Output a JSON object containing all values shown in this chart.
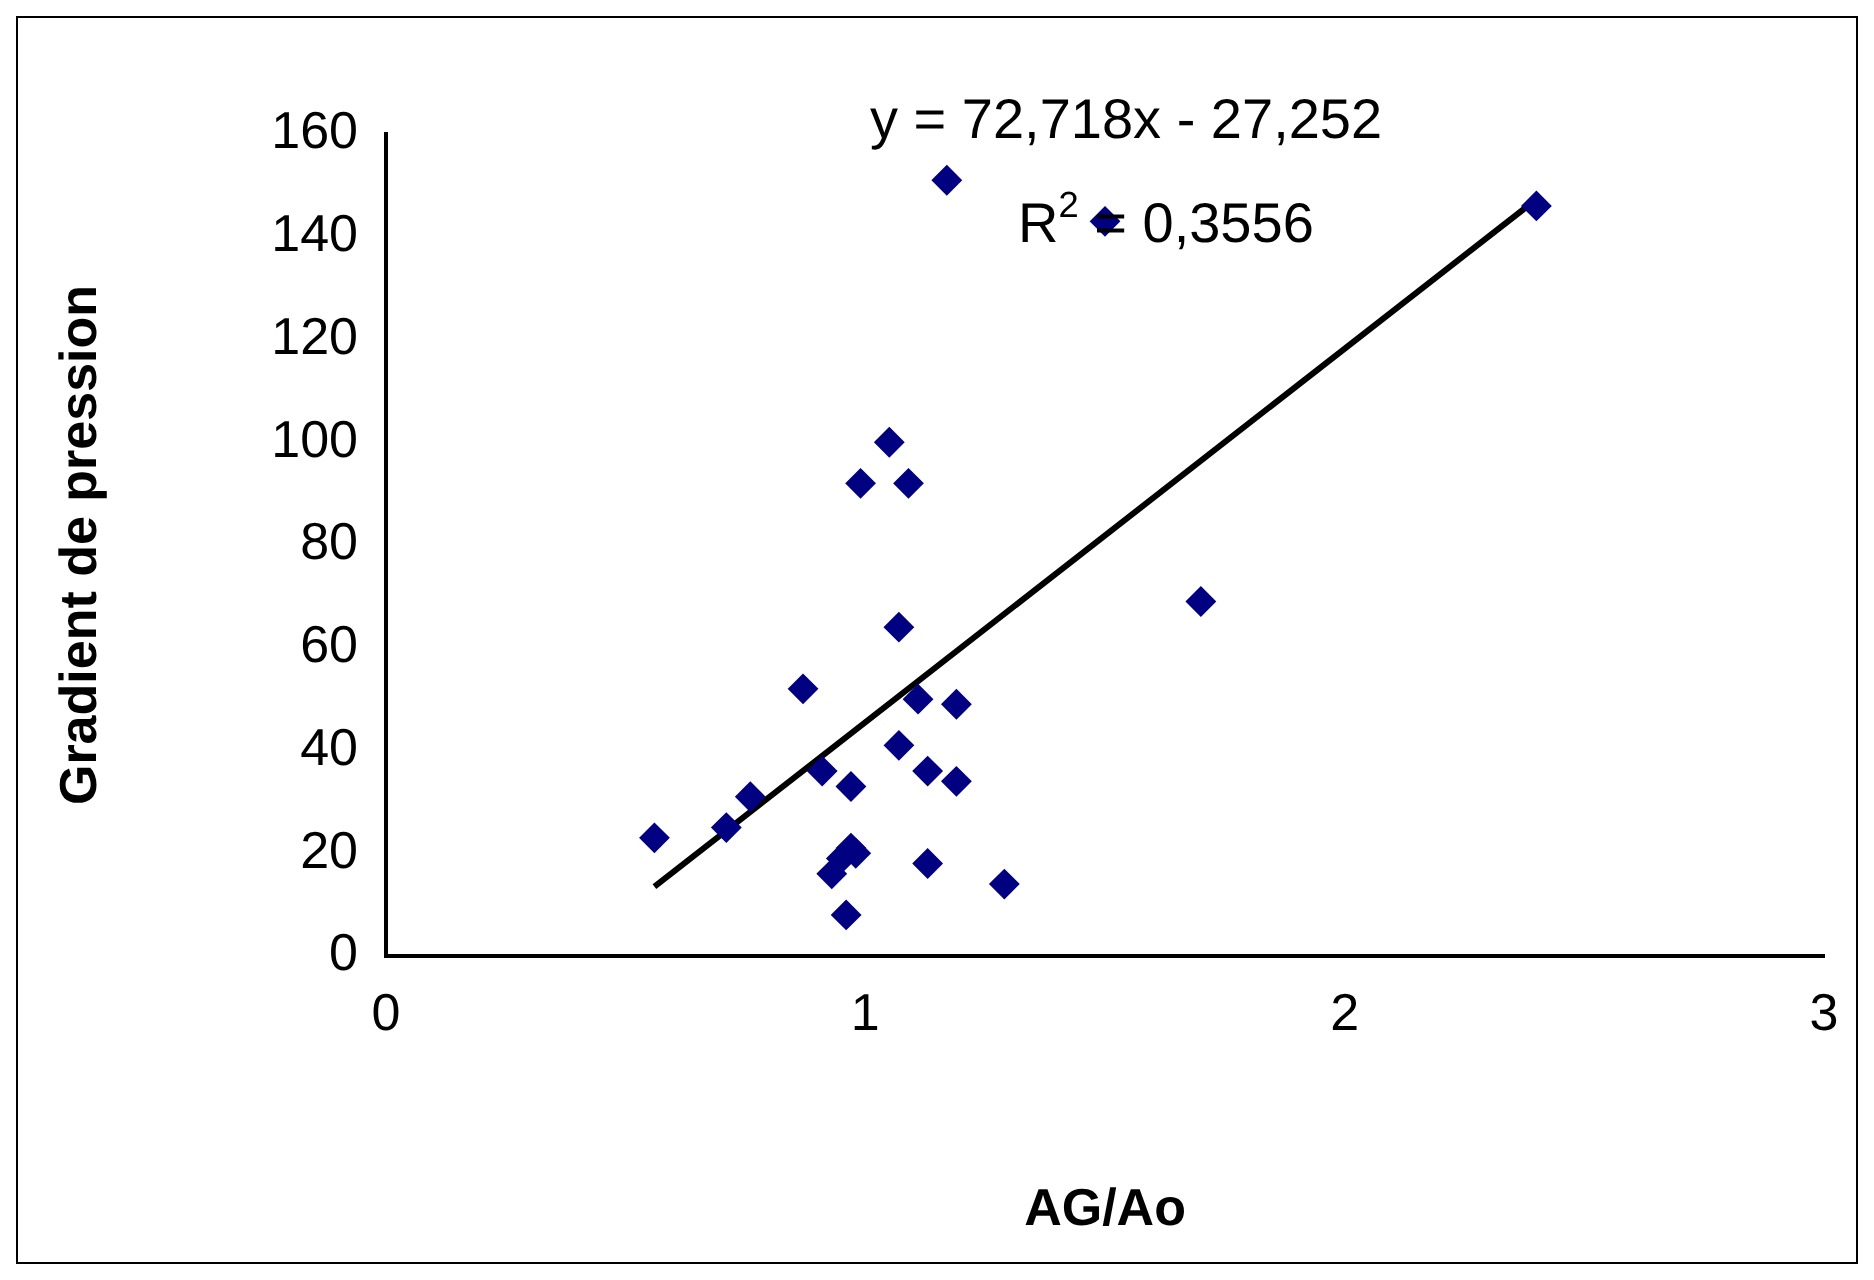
{
  "chart_data": {
    "type": "scatter",
    "xlabel": "AG/Ao",
    "ylabel": "Gradient de pression",
    "xlim": [
      0,
      3
    ],
    "xticks": [
      0,
      1,
      2,
      3
    ],
    "ylim": [
      0,
      160
    ],
    "yticks": [
      0,
      20,
      40,
      60,
      80,
      100,
      120,
      140,
      160
    ],
    "grid": false,
    "legend": false,
    "annotations": [
      "y = 72,718x - 27,252",
      "R$^{2}$ = 0,3556"
    ],
    "series": [
      {
        "color": "#000080",
        "marker": "diamond",
        "x": [
          0.56,
          0.71,
          0.76,
          0.87,
          0.91,
          0.93,
          0.95,
          0.97,
          0.98,
          0.96,
          0.97,
          0.99,
          1.05,
          1.07,
          1.07,
          1.09,
          1.11,
          1.13,
          1.13,
          1.19,
          1.19,
          1.29,
          1.17,
          1.5,
          1.7,
          2.4
        ],
        "values": [
          23,
          25,
          31,
          52,
          36,
          16,
          19,
          21,
          20,
          8,
          33,
          92,
          100,
          64,
          41,
          92,
          50,
          36,
          18,
          49,
          34,
          14,
          151,
          143,
          69,
          146
        ]
      },
      {
        "type": "line",
        "marker": "none",
        "color": "#000000",
        "x": [
          0.56,
          2.4
        ],
        "values": [
          13.5,
          147.3
        ]
      }
    ]
  }
}
